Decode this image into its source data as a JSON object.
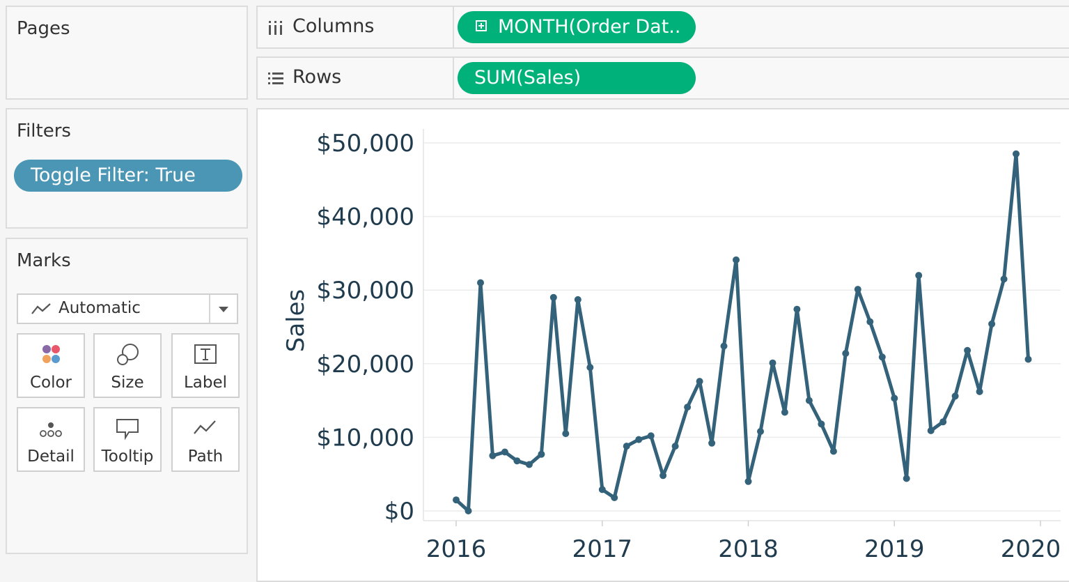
{
  "pages": {
    "title": "Pages"
  },
  "filters": {
    "title": "Filters",
    "pill": "Toggle Filter: True"
  },
  "marks": {
    "title": "Marks",
    "type": {
      "value": "Automatic",
      "icon": "line-mark-icon"
    },
    "buttons": [
      {
        "label": "Color",
        "icon": "color-icon"
      },
      {
        "label": "Size",
        "icon": "size-icon"
      },
      {
        "label": "Label",
        "icon": "label-icon"
      },
      {
        "label": "Detail",
        "icon": "detail-icon"
      },
      {
        "label": "Tooltip",
        "icon": "tooltip-icon"
      },
      {
        "label": "Path",
        "icon": "path-icon"
      }
    ]
  },
  "shelves": {
    "columns": {
      "label": "Columns",
      "pill": "MONTH(Order Dat.."
    },
    "rows": {
      "label": "Rows",
      "pill": "SUM(Sales)"
    }
  },
  "colors": {
    "line": "#33627a",
    "green_pill": "#00b17a",
    "filter_pill": "#4b96b4"
  },
  "chart_data": {
    "type": "line",
    "ylabel": "Sales",
    "xlabel": "",
    "ylim": [
      0,
      50000
    ],
    "y_ticks": [
      {
        "value": 0,
        "label": "$0"
      },
      {
        "value": 10000,
        "label": "$10,000"
      },
      {
        "value": 20000,
        "label": "$20,000"
      },
      {
        "value": 30000,
        "label": "$30,000"
      },
      {
        "value": 40000,
        "label": "$40,000"
      },
      {
        "value": 50000,
        "label": "$50,000"
      }
    ],
    "x_ticks": [
      "2016",
      "2017",
      "2018",
      "2019",
      "2020"
    ],
    "x_start": "2016-01",
    "x_end": "2020-01",
    "grid": true,
    "series": [
      {
        "values": [
          {
            "x": "2016-01",
            "y": 1500
          },
          {
            "x": "2016-02",
            "y": 0
          },
          {
            "x": "2016-03",
            "y": 31000
          },
          {
            "x": "2016-04",
            "y": 7500
          },
          {
            "x": "2016-05",
            "y": 8000
          },
          {
            "x": "2016-06",
            "y": 6800
          },
          {
            "x": "2016-07",
            "y": 6300
          },
          {
            "x": "2016-08",
            "y": 7700
          },
          {
            "x": "2016-09",
            "y": 29000
          },
          {
            "x": "2016-10",
            "y": 10500
          },
          {
            "x": "2016-11",
            "y": 28700
          },
          {
            "x": "2016-12",
            "y": 19500
          },
          {
            "x": "2017-01",
            "y": 2900
          },
          {
            "x": "2017-02",
            "y": 1800
          },
          {
            "x": "2017-03",
            "y": 8800
          },
          {
            "x": "2017-04",
            "y": 9700
          },
          {
            "x": "2017-05",
            "y": 10200
          },
          {
            "x": "2017-06",
            "y": 4800
          },
          {
            "x": "2017-07",
            "y": 8800
          },
          {
            "x": "2017-08",
            "y": 14100
          },
          {
            "x": "2017-09",
            "y": 17600
          },
          {
            "x": "2017-10",
            "y": 9200
          },
          {
            "x": "2017-11",
            "y": 22400
          },
          {
            "x": "2017-12",
            "y": 34100
          },
          {
            "x": "2018-01",
            "y": 4000
          },
          {
            "x": "2018-02",
            "y": 10800
          },
          {
            "x": "2018-03",
            "y": 20100
          },
          {
            "x": "2018-04",
            "y": 13400
          },
          {
            "x": "2018-05",
            "y": 27400
          },
          {
            "x": "2018-06",
            "y": 15000
          },
          {
            "x": "2018-07",
            "y": 11800
          },
          {
            "x": "2018-08",
            "y": 8100
          },
          {
            "x": "2018-09",
            "y": 21400
          },
          {
            "x": "2018-10",
            "y": 30100
          },
          {
            "x": "2018-11",
            "y": 25700
          },
          {
            "x": "2018-12",
            "y": 20900
          },
          {
            "x": "2019-01",
            "y": 15300
          },
          {
            "x": "2019-02",
            "y": 4400
          },
          {
            "x": "2019-03",
            "y": 32000
          },
          {
            "x": "2019-04",
            "y": 10900
          },
          {
            "x": "2019-05",
            "y": 12100
          },
          {
            "x": "2019-06",
            "y": 15600
          },
          {
            "x": "2019-07",
            "y": 21800
          },
          {
            "x": "2019-08",
            "y": 16200
          },
          {
            "x": "2019-09",
            "y": 25400
          },
          {
            "x": "2019-10",
            "y": 31500
          },
          {
            "x": "2019-11",
            "y": 48500
          },
          {
            "x": "2019-12",
            "y": 20600
          }
        ]
      }
    ]
  }
}
